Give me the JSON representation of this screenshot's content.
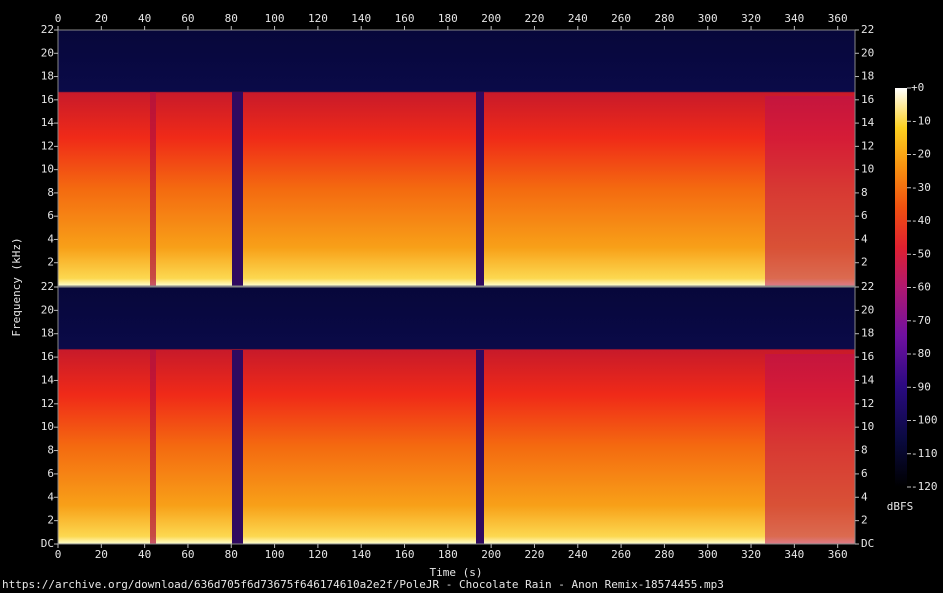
{
  "chart_data": {
    "type": "spectrogram",
    "xlabel": "Time (s)",
    "ylabel": "Frequency (kHz)",
    "xlim": [
      0,
      368
    ],
    "xticks": [
      0,
      20,
      40,
      60,
      80,
      100,
      120,
      140,
      160,
      180,
      200,
      220,
      240,
      260,
      280,
      300,
      320,
      340,
      360
    ],
    "channels": [
      {
        "ylim": [
          0,
          22
        ],
        "yticks": [
          2,
          4,
          6,
          8,
          10,
          12,
          14,
          16,
          18,
          20,
          22
        ]
      },
      {
        "ylim": [
          0,
          22
        ],
        "yticks": [
          {
            "value": 0,
            "label": "DC"
          },
          2,
          4,
          6,
          8,
          10,
          12,
          14,
          16,
          18,
          20,
          22
        ]
      }
    ],
    "colorbar": {
      "label": "dBFS",
      "lim": [
        -120,
        0
      ],
      "ticks": [
        {
          "value": 0,
          "label": "+0"
        },
        -10,
        -20,
        -30,
        -40,
        -50,
        -60,
        -70,
        -80,
        -90,
        -100,
        -110,
        -120
      ]
    },
    "footer": "https://archive.org/download/636d705f6d73675f646174610a2e2f/PoleJR - Chocolate Rain - Anon Remix-18574455.mp3"
  }
}
